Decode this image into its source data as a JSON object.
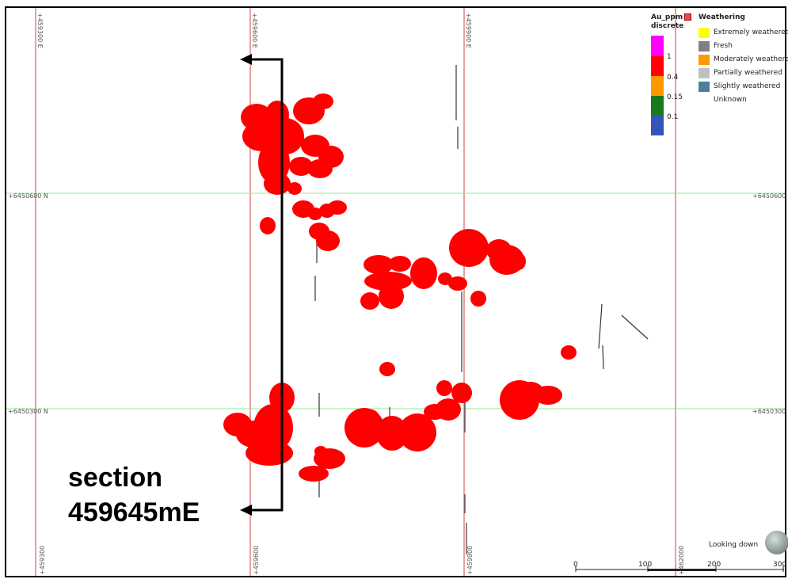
{
  "section": {
    "line1": "section",
    "line2": "459645mE"
  },
  "grid": {
    "easting_labels": [
      {
        "value": "+459300 E",
        "rot": 90
      },
      {
        "value": "+459600 E",
        "rot": 90
      },
      {
        "value": "+459900 E",
        "rot": 90
      },
      {
        "value": "+459300",
        "rot": -90
      },
      {
        "value": "+459600",
        "rot": -90
      },
      {
        "value": "+459900",
        "rot": -90
      },
      {
        "value": "+462000",
        "rot": -90
      }
    ],
    "northing_labels": [
      {
        "value": "+6450600 N"
      },
      {
        "value": "+6450600"
      },
      {
        "value": "+6450300 N"
      },
      {
        "value": "+6450300"
      }
    ]
  },
  "legend_au": {
    "title_line1": "Au_ppm",
    "title_line2": "discrete",
    "entries": [
      {
        "color": "#ff00ff"
      },
      {
        "color": "#ff0000",
        "label": "1"
      },
      {
        "color": "#ff9900",
        "label": "0.4"
      },
      {
        "color": "#1a7a1a",
        "label": "0.15"
      },
      {
        "color": "#3355bb",
        "label": "0.1"
      }
    ]
  },
  "legend_weathering": {
    "title": "Weathering",
    "items": [
      {
        "label": "Extremely weathered",
        "color": "#ffff00"
      },
      {
        "label": "Fresh",
        "color": "#808080"
      },
      {
        "label": "Moderately weathered",
        "color": "#ff9900"
      },
      {
        "label": "Partially weathered",
        "color": "#c0c0c0"
      },
      {
        "label": "Slightly weathered",
        "color": "#4a7f9c"
      },
      {
        "label": "Unknown",
        "color": ""
      }
    ]
  },
  "view": {
    "looking_down": "Looking down"
  },
  "scale_bar": {
    "ticks": [
      "0",
      "100",
      "200",
      "300"
    ]
  },
  "colors": {
    "orebody": "#ff0000",
    "grid_easting": "#e8a0a0",
    "grid_northing": "#90ee90",
    "arrow": "#000000"
  }
}
